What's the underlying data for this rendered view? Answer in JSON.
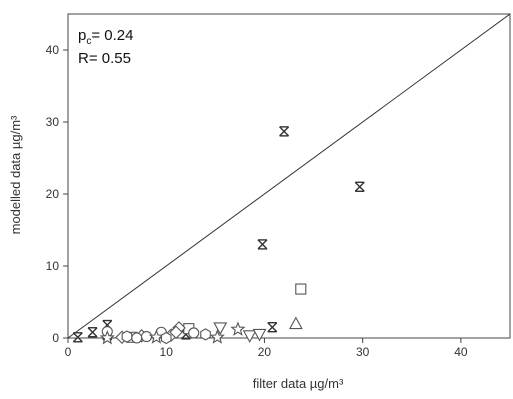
{
  "chart_data": {
    "type": "scatter",
    "xlabel": "filter data µg/m³",
    "ylabel": "modelled data µg/m³",
    "xlim": [
      0,
      45
    ],
    "ylim": [
      0,
      45
    ],
    "xticks": [
      0,
      10,
      20,
      30,
      40
    ],
    "yticks": [
      0,
      10,
      20,
      30,
      40
    ],
    "grid": false,
    "reference_line": {
      "type": "1:1",
      "from": [
        0,
        0
      ],
      "to": [
        45,
        45
      ]
    },
    "annotations": {
      "pc_main": "p",
      "pc_sub": "c",
      "pc_rest": "= 0.24",
      "r": "R= 0.55"
    },
    "series": [
      {
        "marker": "x-box",
        "color": "#333333",
        "points": [
          [
            1.0,
            0.1
          ],
          [
            2.5,
            0.8
          ],
          [
            4.0,
            0.4
          ],
          [
            4.0,
            1.8
          ],
          [
            12.0,
            0.5
          ],
          [
            19.8,
            13.0
          ],
          [
            20.8,
            1.5
          ],
          [
            22.0,
            28.7
          ],
          [
            29.7,
            21.0
          ]
        ]
      },
      {
        "marker": "square",
        "color": "#555555",
        "points": [
          [
            6.5,
            0.1
          ],
          [
            12.3,
            1.3
          ],
          [
            23.7,
            6.8
          ]
        ]
      },
      {
        "marker": "triangle",
        "color": "#555555",
        "points": [
          [
            23.2,
            2.0
          ]
        ]
      },
      {
        "marker": "inverted-triangle",
        "color": "#555555",
        "points": [
          [
            15.5,
            1.4
          ],
          [
            18.5,
            0.3
          ],
          [
            19.5,
            0.5
          ]
        ]
      },
      {
        "marker": "diamond",
        "color": "#555555",
        "points": [
          [
            5.5,
            0.1
          ],
          [
            7.5,
            0.3
          ],
          [
            10.5,
            0.4
          ],
          [
            11.3,
            1.4
          ],
          [
            11.0,
            0.8
          ]
        ]
      },
      {
        "marker": "circle",
        "color": "#555555",
        "points": [
          [
            4.0,
            0.9
          ],
          [
            7.0,
            0.0
          ],
          [
            8.0,
            0.2
          ],
          [
            9.5,
            0.8
          ],
          [
            12.8,
            0.7
          ]
        ]
      },
      {
        "marker": "star",
        "color": "#555555",
        "points": [
          [
            4.0,
            0.0
          ],
          [
            9.0,
            0.1
          ],
          [
            15.2,
            0.1
          ],
          [
            17.3,
            1.2
          ]
        ]
      },
      {
        "marker": "hexagon",
        "color": "#555555",
        "points": [
          [
            6.0,
            0.2
          ],
          [
            10.0,
            0.0
          ],
          [
            14.0,
            0.5
          ]
        ]
      }
    ]
  }
}
